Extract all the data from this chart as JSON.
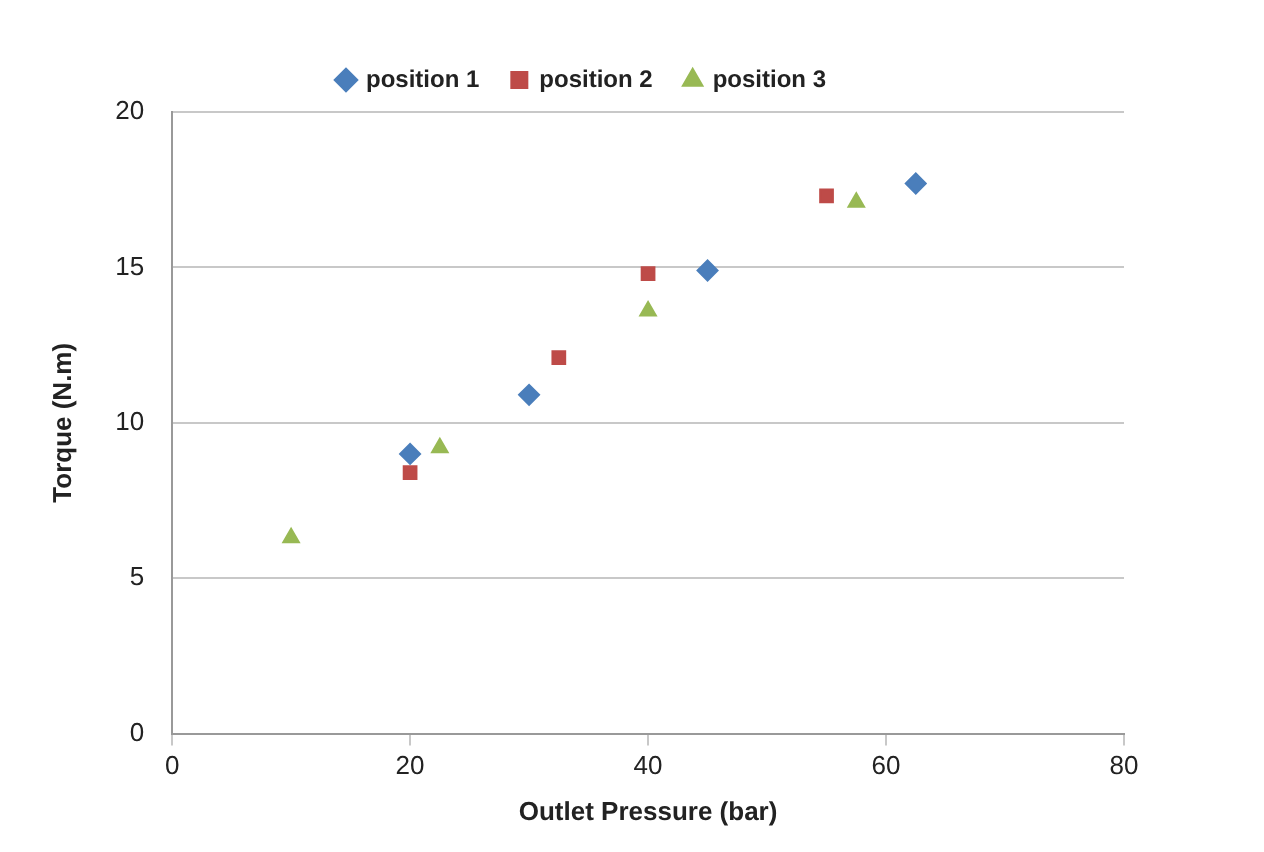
{
  "chart_data": {
    "type": "scatter",
    "xlabel": "Outlet Pressure (bar)",
    "ylabel": "Torque (N.m)",
    "xlim": [
      0,
      80
    ],
    "xticks": [
      0,
      20,
      40,
      60,
      80
    ],
    "ylim": [
      0,
      20
    ],
    "yticks": [
      0,
      5,
      10,
      15,
      20
    ],
    "grid": "y",
    "legend": "top",
    "series": [
      {
        "name": "position 1",
        "color": "#4a7ebb",
        "marker": "diamond",
        "x": [
          20,
          30,
          45,
          62.5
        ],
        "values": [
          9.0,
          10.9,
          14.9,
          17.7
        ]
      },
      {
        "name": "position 2",
        "color": "#be4b48",
        "marker": "square",
        "x": [
          20,
          32.5,
          40,
          55
        ],
        "values": [
          8.4,
          12.1,
          14.8,
          17.3
        ]
      },
      {
        "name": "position 3",
        "color": "#98b954",
        "marker": "triangle",
        "x": [
          10,
          22.5,
          40,
          57.5
        ],
        "values": [
          6.3,
          9.2,
          13.6,
          17.1
        ]
      }
    ]
  }
}
